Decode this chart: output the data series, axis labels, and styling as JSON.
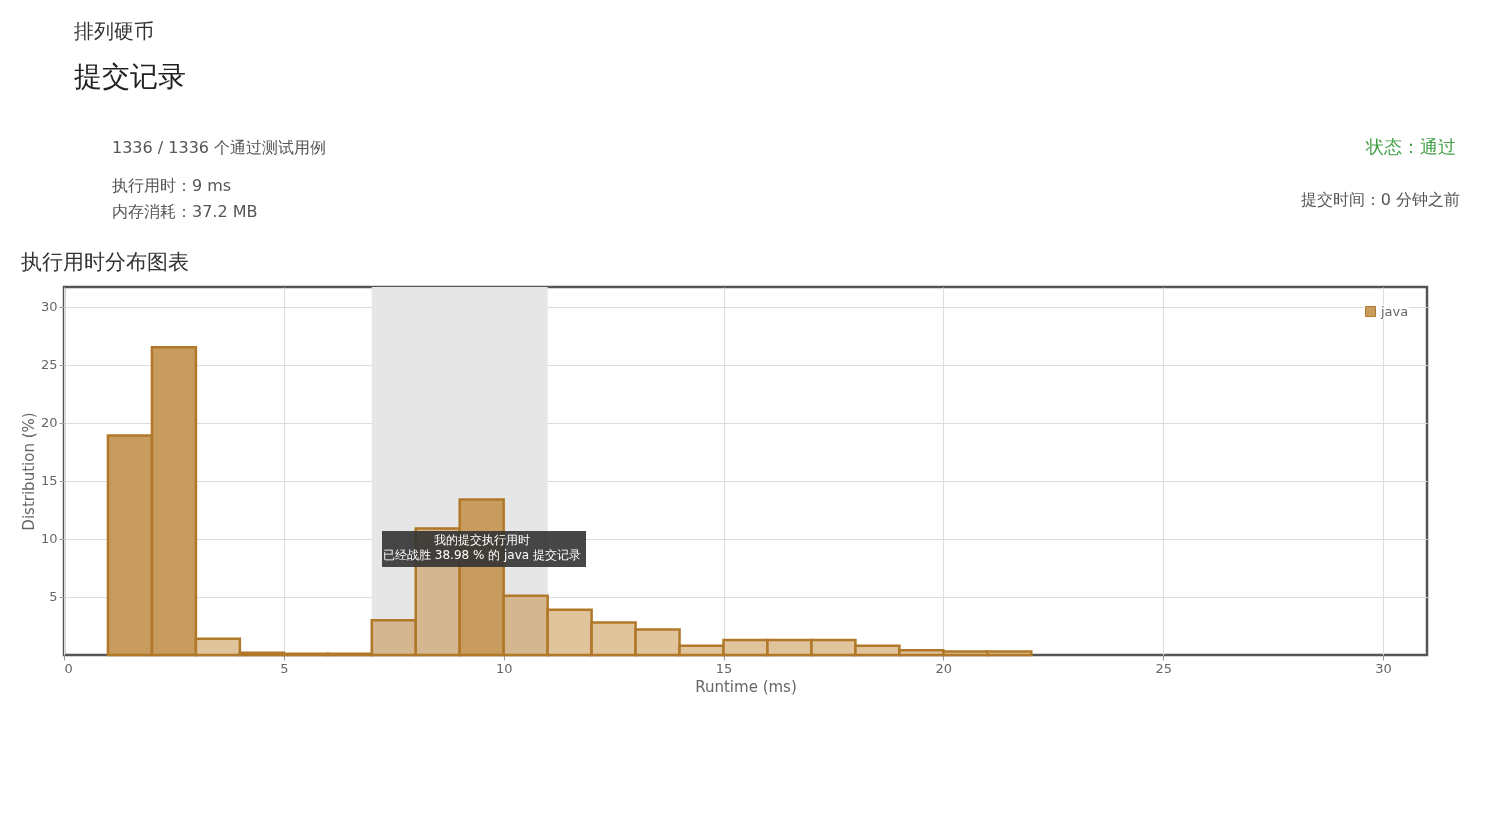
{
  "chart_data": {
    "type": "histogram",
    "title": "执行用时分布图表",
    "xlabel": "Runtime (ms)",
    "ylabel": "Distribution (%)",
    "bins": [
      1,
      2,
      3,
      4,
      5,
      6,
      7,
      8,
      9,
      10,
      11,
      12,
      13,
      14,
      15,
      16,
      17,
      18,
      19,
      20,
      21,
      22
    ],
    "series": [
      {
        "name": "java",
        "color": "#b07828",
        "values": [
          18.9,
          26.5,
          1.4,
          0.2,
          0.1,
          0.1,
          3.0,
          10.9,
          13.4,
          5.1,
          3.9,
          2.8,
          2.2,
          0.8,
          1.3,
          1.3,
          1.3,
          0.8,
          0.4,
          0.3,
          0.3
        ]
      }
    ],
    "colors": [
      "#c89b5e",
      "#c89b5e",
      "#dfc49c",
      "#dfc49c",
      "#dfc49c",
      "#dfc49c",
      "#d4b791",
      "#d4b791",
      "#c89b5e",
      "#d4b791",
      "#dfc49c",
      "#dfc49c",
      "#dfc49c",
      "#dfc49c",
      "#dfc49c",
      "#dfc49c",
      "#dfc49c",
      "#dfc49c",
      "#dfc49c",
      "#dfc49c",
      "#dfc49c"
    ],
    "bands": [
      {
        "axis": "x",
        "from": 7,
        "to": 11,
        "color": "#e6e6e6"
      }
    ],
    "xlim": [
      0,
      31
    ],
    "xticks": [
      0,
      5,
      10,
      15,
      20,
      25,
      30
    ],
    "ylim": [
      0,
      31.7
    ],
    "yticks": [
      5,
      10,
      15,
      20,
      25,
      30
    ],
    "grid": true,
    "legend": "top right",
    "annotations": [
      "排列硬币",
      "提交记录",
      "1336 / 1336 个通过测试用例",
      "执行用时：9 ms",
      "内存消耗：37.2 MB",
      "状态：通过",
      "提交时间：0 分钟之前",
      "我的提交执行用时",
      "已经战胜 38.98 % 的 java 提交记录"
    ]
  }
}
